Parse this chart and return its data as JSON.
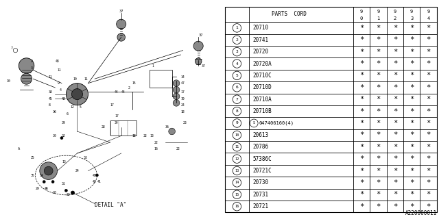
{
  "diagram_label": "A220000011",
  "table_header": "PARTS CORD",
  "year_labels": [
    "9\n0",
    "9\n1",
    "9\n2",
    "9\n3",
    "9\n4"
  ],
  "rows": [
    {
      "num": "1",
      "code": "20710"
    },
    {
      "num": "2",
      "code": "20741"
    },
    {
      "num": "3",
      "code": "20720"
    },
    {
      "num": "4",
      "code": "20720A"
    },
    {
      "num": "5",
      "code": "20710C"
    },
    {
      "num": "6",
      "code": "20710D"
    },
    {
      "num": "7",
      "code": "20710A"
    },
    {
      "num": "8",
      "code": "20710B"
    },
    {
      "num": "9",
      "code": "047406160(4)",
      "special": true
    },
    {
      "num": "10",
      "code": "20613"
    },
    {
      "num": "11",
      "code": "20786"
    },
    {
      "num": "12",
      "code": "57386C"
    },
    {
      "num": "13",
      "code": "20721C"
    },
    {
      "num": "14",
      "code": "20730"
    },
    {
      "num": "15",
      "code": "20731"
    },
    {
      "num": "16",
      "code": "20721"
    }
  ],
  "bg_color": "#ffffff",
  "line_color": "#000000",
  "gray": "#999999",
  "darkgray": "#555555"
}
